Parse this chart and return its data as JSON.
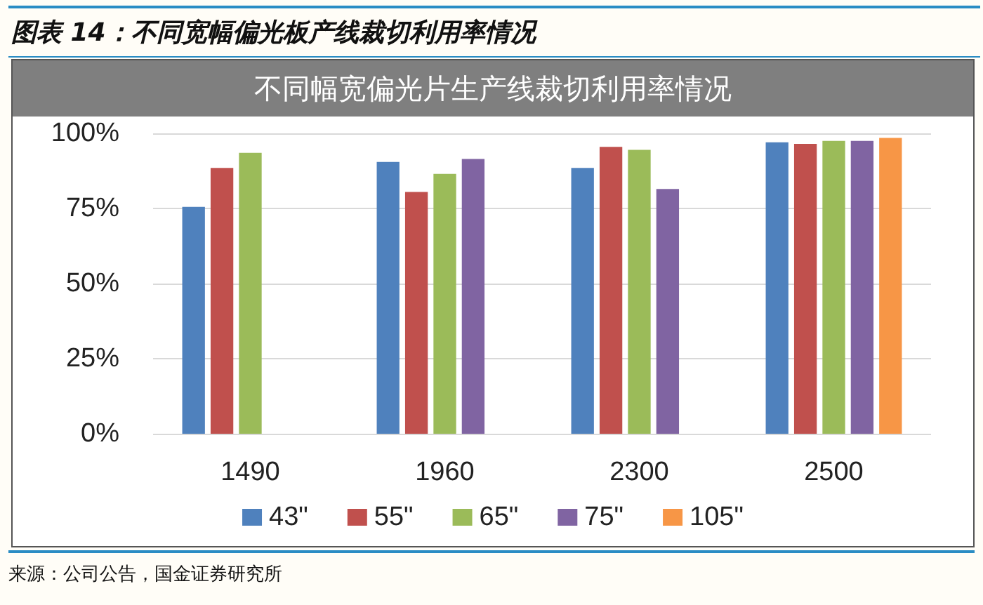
{
  "chart_data": {
    "type": "bar",
    "title": "图表 14：不同宽幅偏光板产线裁切利用率情况",
    "subtitle": "不同幅宽偏光片生产线裁切利用率情况",
    "categories": [
      "1490",
      "1960",
      "2300",
      "2500"
    ],
    "series": [
      {
        "name": "43\"",
        "color": "#4f81bd",
        "values": [
          75.5,
          90.5,
          88.5,
          97
        ]
      },
      {
        "name": "55\"",
        "color": "#c0504d",
        "values": [
          88.5,
          80.5,
          95.5,
          96.5
        ]
      },
      {
        "name": "65\"",
        "color": "#9bbb59",
        "values": [
          93.5,
          86.5,
          94.5,
          97.5
        ]
      },
      {
        "name": "75\"",
        "color": "#8064a2",
        "values": [
          null,
          91.5,
          81.5,
          97.5
        ]
      },
      {
        "name": "105\"",
        "color": "#f79646",
        "values": [
          null,
          null,
          null,
          98.5
        ]
      }
    ],
    "ylim": [
      0,
      100
    ],
    "yticks": [
      {
        "value": 0,
        "label": "0%"
      },
      {
        "value": 25,
        "label": "25%"
      },
      {
        "value": 50,
        "label": "50%"
      },
      {
        "value": 75,
        "label": "75%"
      },
      {
        "value": 100,
        "label": "100%"
      }
    ],
    "grid": "y",
    "legend": "bottom",
    "annotations": [
      "来源：公司公告，国金证券研究所"
    ]
  }
}
